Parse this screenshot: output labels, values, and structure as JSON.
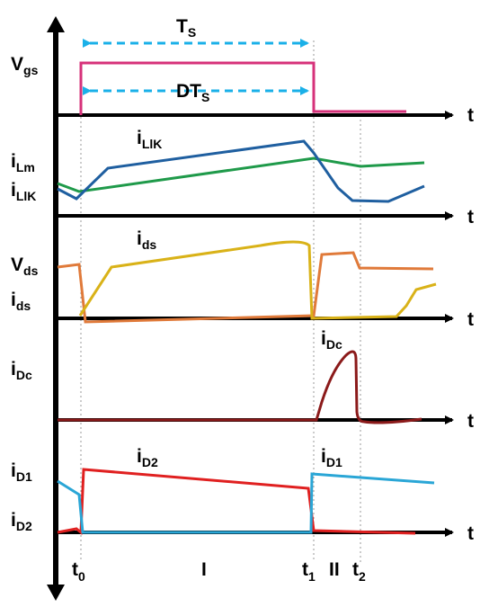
{
  "labels": {
    "vgs": {
      "main": "V",
      "sub": "gs"
    },
    "ilm": {
      "main": "i",
      "sub": "Lm"
    },
    "ilk": {
      "main": "i",
      "sub": "LlK"
    },
    "vds": {
      "main": "V",
      "sub": "ds"
    },
    "ids": {
      "main": "i",
      "sub": "ds"
    },
    "idc": {
      "main": "i",
      "sub": "Dc"
    },
    "id1": {
      "main": "i",
      "sub": "D1"
    },
    "id2": {
      "main": "i",
      "sub": "D2"
    },
    "t_axis": "t",
    "ts": {
      "main": "T",
      "sub": "S"
    },
    "dts": {
      "main": "DT",
      "sub": "S"
    },
    "t0": {
      "main": "t",
      "sub": "0"
    },
    "t1": {
      "main": "t",
      "sub": "1"
    },
    "t2": {
      "main": "t",
      "sub": "2"
    },
    "interval_1": "I",
    "interval_2": "II"
  },
  "colors": {
    "vgs": "#d6317a",
    "ilk": "#1f5fa0",
    "ilm": "#1f9a4a",
    "vds": "#e07a3a",
    "ids": "#d9b218",
    "idc": "#8b1a1a",
    "id1": "#2aa6d6",
    "id2": "#e02020",
    "arrow": "#1ab0e8",
    "axis": "#000000",
    "guide": "#999999"
  }
}
